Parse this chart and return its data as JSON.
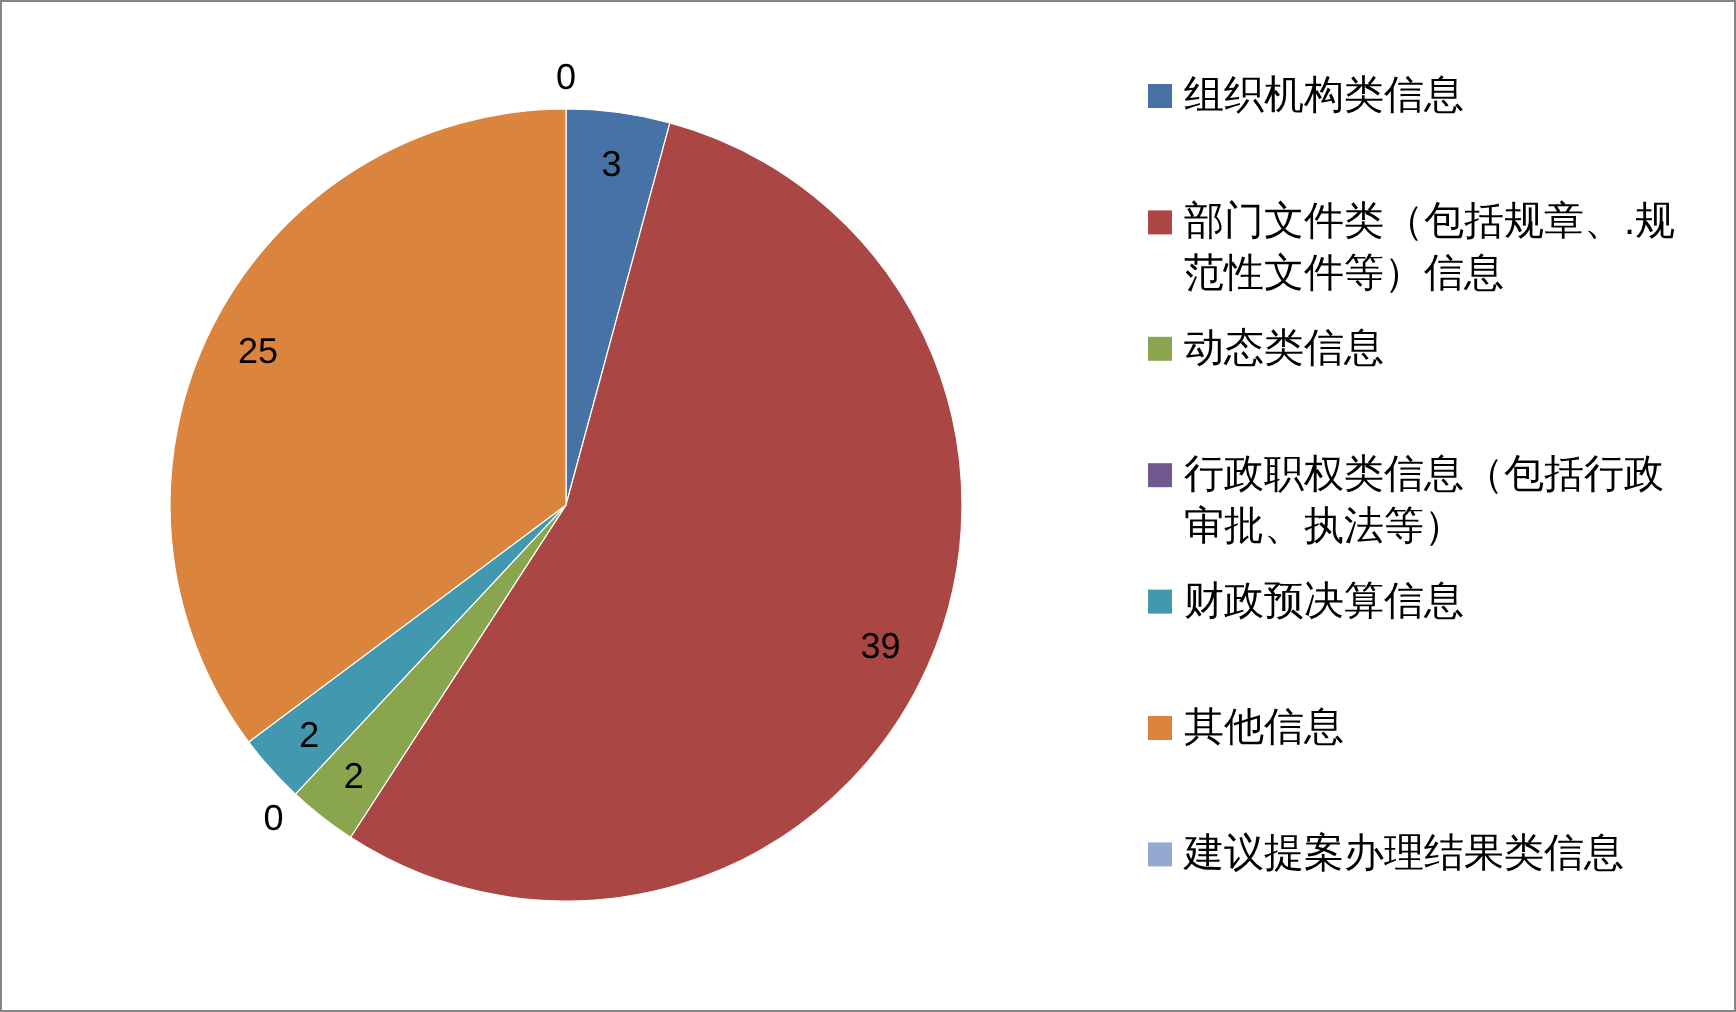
{
  "chart_data": {
    "type": "pie",
    "categories": [
      "组织机构类信息",
      "部门文件类（包括规章、.规范性文件等）信息",
      "动态类信息",
      "行政职权类信息（包括行政审批、执法等）",
      "财政预决算信息",
      "其他信息",
      "建议提案办理结果类信息"
    ],
    "values": [
      3,
      39,
      2,
      0,
      2,
      25,
      0
    ],
    "value_labels": [
      "3",
      "39",
      "2",
      "0",
      "2",
      "25",
      "0"
    ],
    "colors": [
      "#4672a6",
      "#aa4644",
      "#89a54e",
      "#71588f",
      "#4198af",
      "#db843d",
      "#93a9cf"
    ],
    "legend": "right"
  }
}
